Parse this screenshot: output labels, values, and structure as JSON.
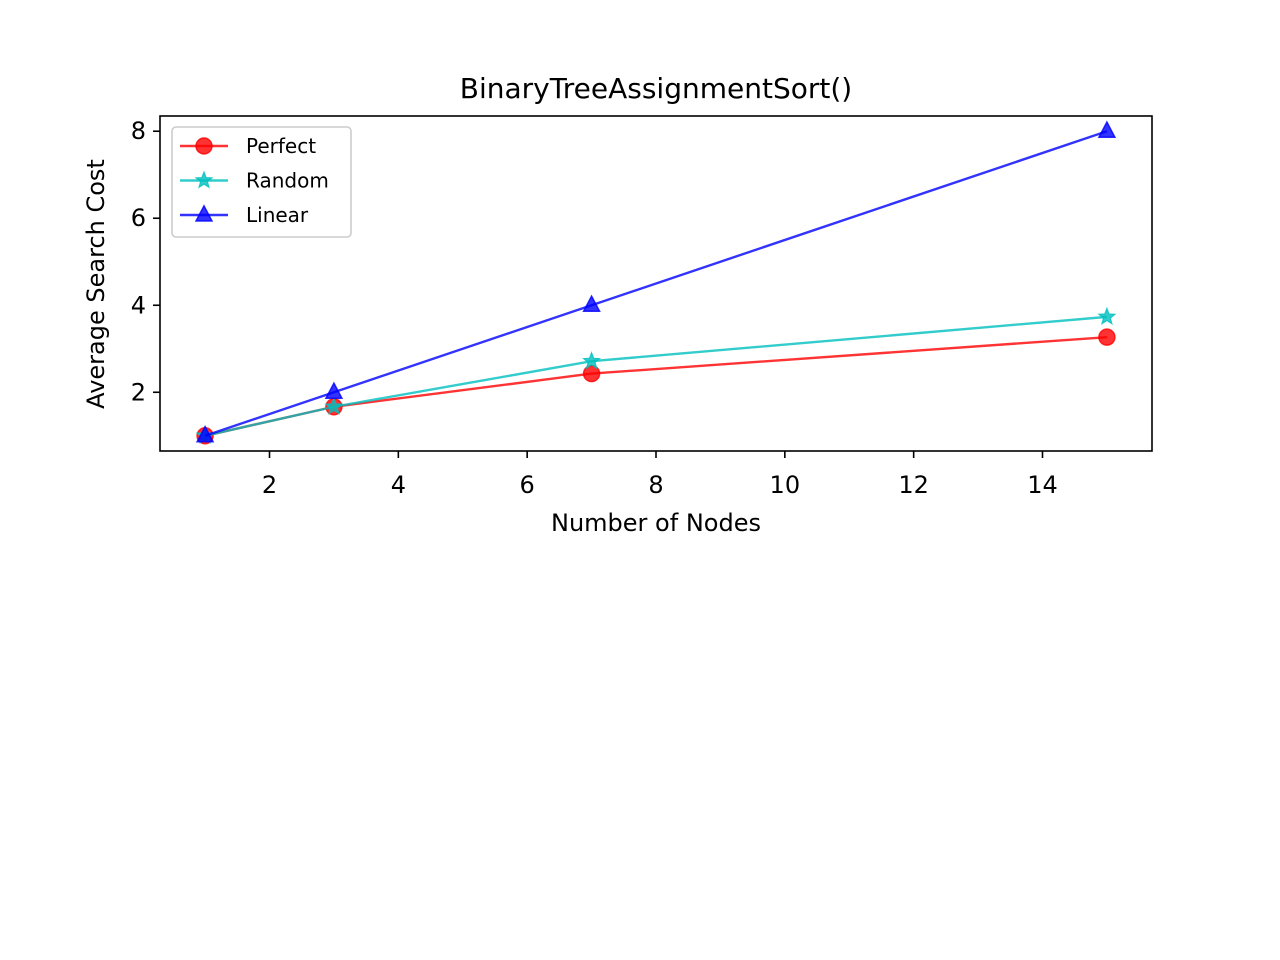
{
  "chart_data": {
    "type": "line",
    "title": "BinaryTreeAssignmentSort()",
    "xlabel": "Number of Nodes",
    "ylabel": "Average Search Cost",
    "xlim": [
      0.3,
      15.7
    ],
    "ylim": [
      0.65,
      8.35
    ],
    "xticks": [
      2,
      4,
      6,
      8,
      10,
      12,
      14
    ],
    "yticks": [
      2,
      4,
      6,
      8
    ],
    "x": [
      1,
      3,
      7,
      15
    ],
    "series": [
      {
        "name": "Perfect",
        "values": [
          1.0,
          1.667,
          2.429,
          3.267
        ],
        "color": "#ff0000",
        "marker": "circle"
      },
      {
        "name": "Random",
        "values": [
          1.0,
          1.667,
          2.714,
          3.733
        ],
        "color": "#00bfbf",
        "marker": "star"
      },
      {
        "name": "Linear",
        "values": [
          1.0,
          2.0,
          4.0,
          8.0
        ],
        "color": "#0000ff",
        "marker": "triangle"
      }
    ],
    "legend_position": "upper-left",
    "grid": false
  }
}
